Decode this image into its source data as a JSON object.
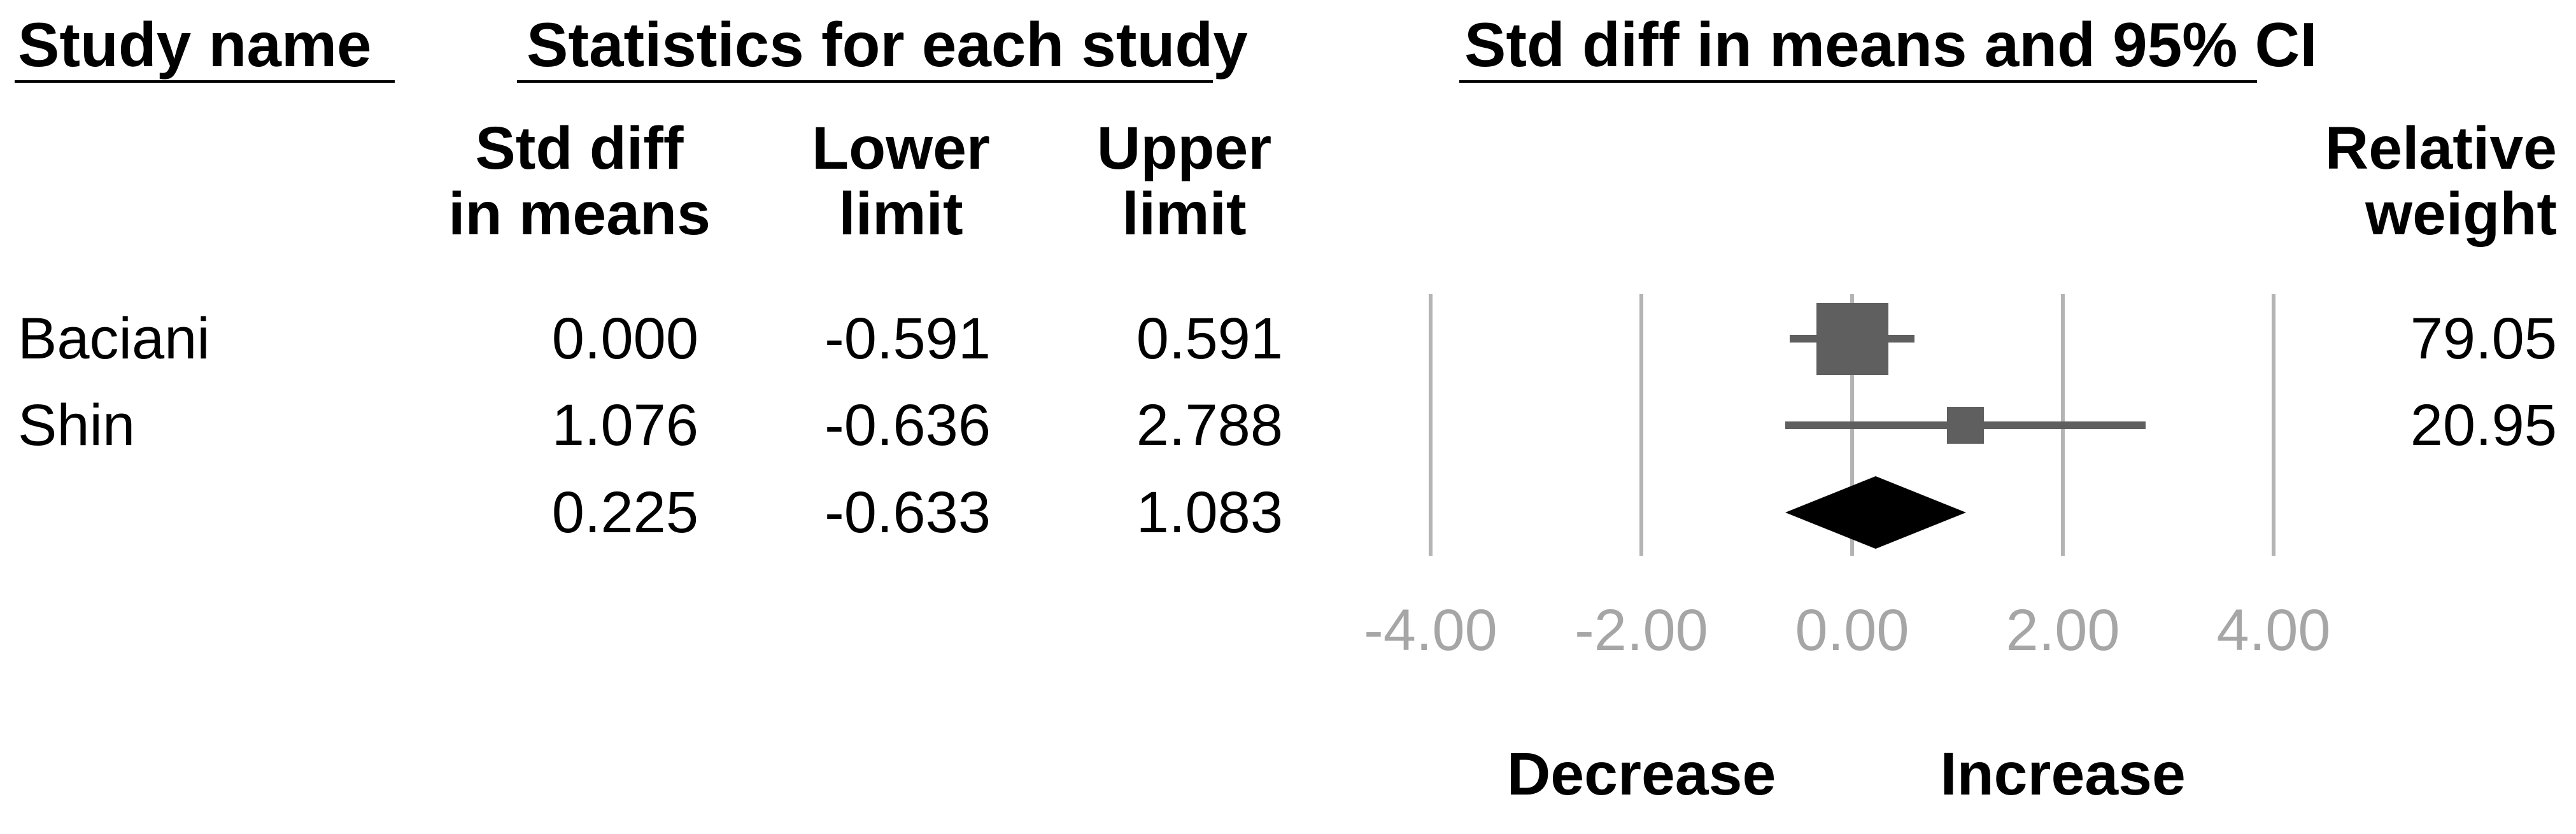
{
  "headers": {
    "study_name": "Study name",
    "statistics": "Statistics for each study",
    "plot": "Std diff in means and 95% CI"
  },
  "columns": {
    "std_diff_line1": "Std diff",
    "std_diff_line2": "in means",
    "lower_line1": "Lower",
    "lower_line2": "limit",
    "upper_line1": "Upper",
    "upper_line2": "limit",
    "weight_line1": "Relative",
    "weight_line2": "weight"
  },
  "rows": [
    {
      "study": "Baciani",
      "std_diff": "0.000",
      "lower": "-0.591",
      "upper": "0.591",
      "weight": "79.05"
    },
    {
      "study": "Shin",
      "std_diff": "1.076",
      "lower": "-0.636",
      "upper": "2.788",
      "weight": "20.95"
    },
    {
      "study": "",
      "std_diff": "0.225",
      "lower": "-0.633",
      "upper": "1.083",
      "weight": ""
    }
  ],
  "footer": {
    "decrease": "Decrease",
    "increase": "Increase"
  },
  "colors": {
    "marker": "#5f5f5f",
    "gridline": "#b4b4b4",
    "axis_text": "#a6a6a6",
    "diamond": "#000000",
    "text": "#000000"
  },
  "chart_data": {
    "type": "forest",
    "title": "Std diff in means and 95% CI",
    "effect_measure": "Std diff in means",
    "x_axis": {
      "min": -4,
      "max": 4,
      "ticks": [
        -4,
        -2,
        0,
        2,
        4
      ],
      "tick_labels": [
        "-4.00",
        "-2.00",
        "0.00",
        "2.00",
        "4.00"
      ],
      "grid": true
    },
    "studies": [
      {
        "name": "Baciani",
        "std_diff_in_means": 0.0,
        "lower_limit": -0.591,
        "upper_limit": 0.591,
        "relative_weight": 79.05
      },
      {
        "name": "Shin",
        "std_diff_in_means": 1.076,
        "lower_limit": -0.636,
        "upper_limit": 2.788,
        "relative_weight": 20.95
      }
    ],
    "summary": {
      "std_diff_in_means": 0.225,
      "lower_limit": -0.633,
      "upper_limit": 1.083
    },
    "direction_labels": {
      "negative": "Decrease",
      "positive": "Increase"
    }
  }
}
